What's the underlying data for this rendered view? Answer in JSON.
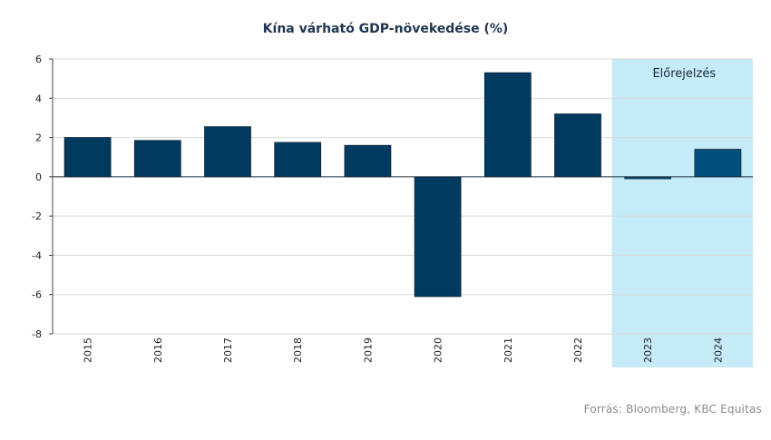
{
  "chart_data": {
    "type": "bar",
    "title": "Kína várható GDP-növekedése (%)",
    "categories": [
      "2015",
      "2016",
      "2017",
      "2018",
      "2019",
      "2020",
      "2021",
      "2022",
      "2023",
      "2024"
    ],
    "values": [
      2.0,
      1.85,
      2.55,
      1.75,
      1.6,
      -6.1,
      5.3,
      3.2,
      -0.1,
      1.4
    ],
    "yticks": [
      6,
      4,
      2,
      0,
      -2,
      -4,
      -6,
      -8
    ],
    "ylim": [
      -8,
      6
    ],
    "grid": true,
    "forecast": {
      "label": "Előrejelzés",
      "from": "2023",
      "to": "2024"
    },
    "colors": {
      "bar": "#003a5f",
      "forecast_bar": "#004f7c",
      "forecast_band": "#c5ebf8",
      "grid": "#d9d9d9"
    }
  },
  "source": "Forrás: Bloomberg, KBC Equitas"
}
